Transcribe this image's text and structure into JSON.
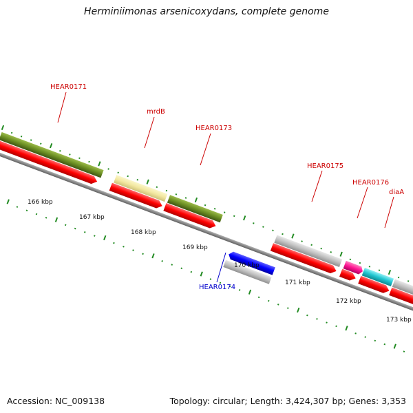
{
  "title": "Herminiimonas arsenicoxydans, complete genome",
  "footer": {
    "accession": "Accession: NC_009138",
    "info": "Topology: circular; Length: 3,424,307 bp; Genes: 3,353"
  },
  "scale_labels": [
    "166 kbp",
    "167 kbp",
    "168 kbp",
    "169 kbp",
    "170 kbp",
    "171 kbp",
    "172 kbp",
    "173 kbp"
  ],
  "gene_labels": [
    {
      "id": "hear0171",
      "text": "HEAR0171",
      "color": "#cc0000"
    },
    {
      "id": "mrdb",
      "text": "mrdB",
      "color": "#cc0000"
    },
    {
      "id": "hear0173",
      "text": "HEAR0173",
      "color": "#cc0000"
    },
    {
      "id": "hear0175",
      "text": "HEAR0175",
      "color": "#cc0000"
    },
    {
      "id": "hear0176",
      "text": "HEAR0176",
      "color": "#cc0000"
    },
    {
      "id": "diaa",
      "text": "diaA",
      "color": "#cc0000"
    },
    {
      "id": "hear0174",
      "text": "HEAR0174",
      "color": "#0000cc"
    }
  ],
  "colors": {
    "cds": "#ff0000",
    "olive": "#6b8e23",
    "khaki": "#f0e68c",
    "grey": "#c0c0c0",
    "magenta": "#ff1493",
    "cyan": "#20c6d0",
    "blue": "#0000ff",
    "backbone": "#808080",
    "ticks": "#228b22"
  }
}
